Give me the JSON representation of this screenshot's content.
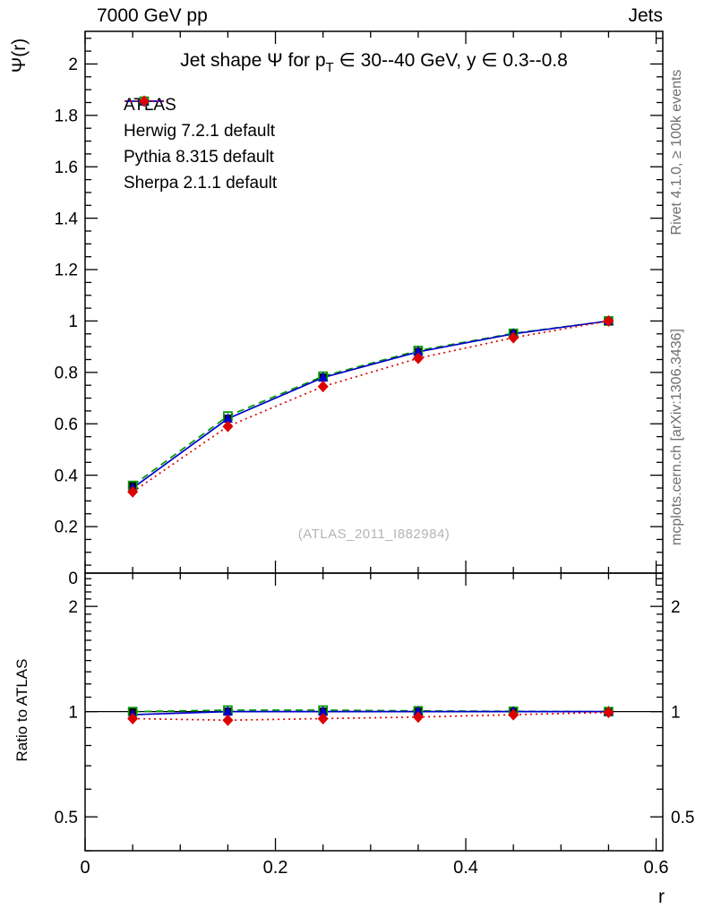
{
  "header": {
    "left": "7000 GeV pp",
    "right": "Jets"
  },
  "side_notes": {
    "rivet": "Rivet 4.1.0, ≥ 100k events",
    "mcplots": "mcplots.cern.ch [arXiv:1306.3436]"
  },
  "main": {
    "ylabel": "Ψ(r)",
    "title_pre": "Jet shape Ψ for p",
    "title_sub": "T",
    "title_post": " ∈ 30--40 GeV, y ∈ 0.3--0.8",
    "watermark": "(ATLAS_2011_I882984)"
  },
  "ratio": {
    "ylabel": "Ratio to ATLAS"
  },
  "chart_data": {
    "type": "line",
    "title": "Jet shape Ψ for pT ∈ 30--40 GeV, y ∈ 0.3--0.8",
    "xlabel": "r",
    "ylabel": "Ψ(r)",
    "ratio_ylabel": "Ratio to ATLAS",
    "legend_position": "top-left",
    "grid": false,
    "x": [
      0.05,
      0.15,
      0.25,
      0.35,
      0.45,
      0.55
    ],
    "xlim": [
      0,
      0.607
    ],
    "xticks": [
      0,
      0.2,
      0.4,
      0.6
    ],
    "x_minor_step": 0.05,
    "main_ylim": [
      0.019,
      2.127
    ],
    "main_yticks": [
      0,
      0.2,
      0.4,
      0.6,
      0.8,
      1,
      1.2,
      1.4,
      1.6,
      1.8,
      2
    ],
    "main_y_minor_step": 0.05,
    "ratio_scale": "log",
    "ratio_ylim": [
      0.4,
      2.49
    ],
    "ratio_yticks": [
      0.5,
      1,
      2
    ],
    "ratio_yticks_minor": [
      0.4,
      0.6,
      0.7,
      0.8,
      0.9,
      1.1,
      1.2,
      1.3,
      1.4,
      1.5,
      1.6,
      1.7,
      1.8,
      1.9,
      2.1,
      2.2,
      2.3,
      2.4
    ],
    "series": [
      {
        "name": "ATLAS",
        "color": "#000000",
        "marker": "square-filled",
        "line": "none",
        "values": [
          0.36,
          0.62,
          0.78,
          0.88,
          0.95,
          1.0
        ],
        "ratio": [
          1.0,
          1.0,
          1.0,
          1.0,
          1.0,
          1.0
        ]
      },
      {
        "name": "Herwig 7.2.1 default",
        "color": "#009900",
        "marker": "square-open",
        "line": "dashed",
        "values": [
          0.36,
          0.63,
          0.785,
          0.885,
          0.952,
          1.0
        ],
        "ratio": [
          1.0,
          1.01,
          1.01,
          1.005,
          1.002,
          1.0
        ]
      },
      {
        "name": "Pythia 8.315 default",
        "color": "#0000cc",
        "marker": "triangle-filled",
        "line": "solid",
        "values": [
          0.35,
          0.62,
          0.78,
          0.88,
          0.95,
          1.0
        ],
        "ratio": [
          0.98,
          1.0,
          1.0,
          1.0,
          1.0,
          1.0
        ]
      },
      {
        "name": "Sherpa 2.1.1 default",
        "color": "#dd0000",
        "marker": "diamond-filled",
        "line": "dotted",
        "values": [
          0.335,
          0.59,
          0.745,
          0.855,
          0.935,
          1.0
        ],
        "ratio": [
          0.955,
          0.945,
          0.955,
          0.965,
          0.98,
          0.995
        ]
      }
    ],
    "reference_line": 1.0
  }
}
